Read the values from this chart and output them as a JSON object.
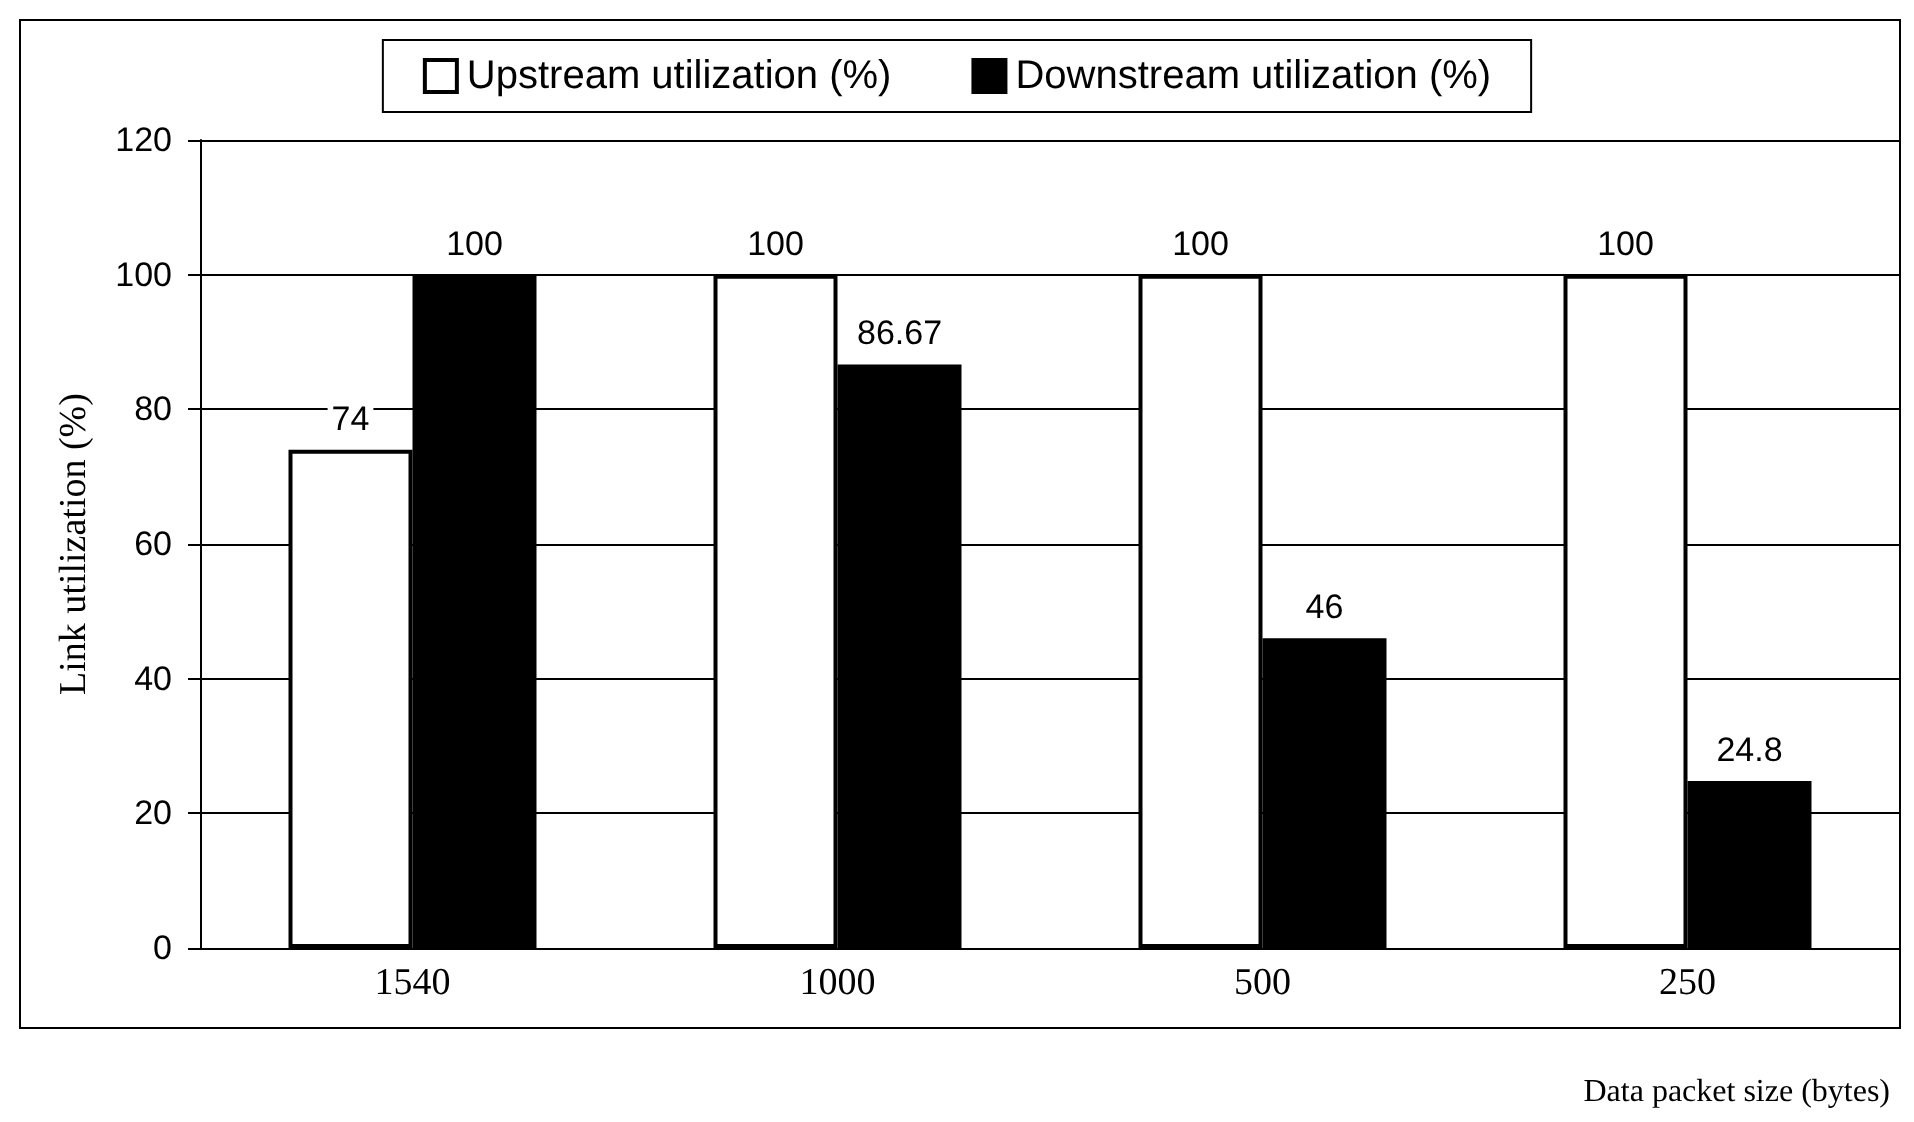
{
  "chart_data": {
    "type": "bar",
    "xlabel": "Data packet size (bytes)",
    "ylabel": "Link utilization (%)",
    "categories": [
      "1540",
      "1000",
      "500",
      "250"
    ],
    "series": [
      {
        "name": "Upstream utilization (%)",
        "color": "#ffffff",
        "values": [
          74,
          100,
          100,
          100
        ]
      },
      {
        "name": "Downstream utilization (%)",
        "color": "#000000",
        "values": [
          100,
          86.67,
          46,
          24.8
        ]
      }
    ],
    "ylim": [
      0,
      120
    ],
    "yticks": [
      0,
      20,
      40,
      60,
      80,
      100,
      120
    ],
    "grid": "y",
    "legend": "top",
    "data_labels": true
  }
}
